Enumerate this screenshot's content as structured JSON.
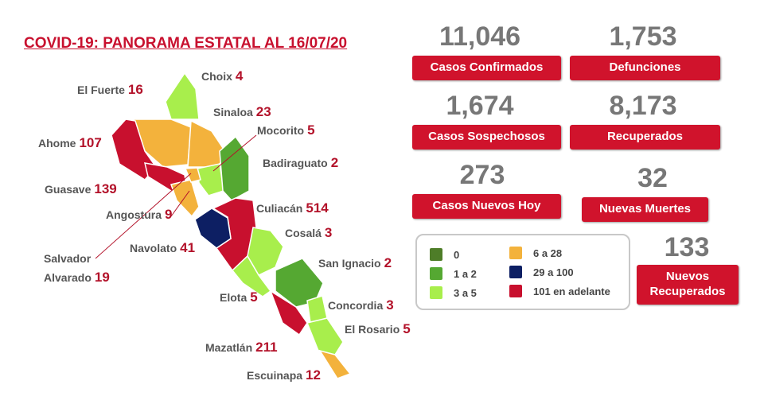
{
  "title": "COVID-19: PANORAMA ESTATAL AL 16/07/20",
  "stats": [
    {
      "value": "11,046",
      "label": "Casos Confirmados"
    },
    {
      "value": "1,753",
      "label": "Defunciones"
    },
    {
      "value": "1,674",
      "label": "Casos Sospechosos"
    },
    {
      "value": "8,173",
      "label": "Recuperados"
    },
    {
      "value": "273",
      "label": "Casos Nuevos Hoy"
    },
    {
      "value": "32",
      "label": "Nuevas Muertes"
    },
    {
      "value": "133",
      "label": "Nuevos Recuperados"
    }
  ],
  "legend": [
    {
      "label": "0",
      "color": "#4e7d28"
    },
    {
      "label": "1 a 2",
      "color": "#55a832"
    },
    {
      "label": "3 a 5",
      "color": "#a8ee4c"
    },
    {
      "label": "6 a 28",
      "color": "#f3b23c"
    },
    {
      "label": "29 a 100",
      "color": "#0d1f63"
    },
    {
      "label": "101 en adelante",
      "color": "#c8102e"
    }
  ],
  "municipalities": [
    {
      "name": "Choix",
      "count": 4,
      "color": "#a8ee4c"
    },
    {
      "name": "El Fuerte",
      "count": 16,
      "color": "#f3b23c"
    },
    {
      "name": "Sinaloa",
      "count": 23,
      "color": "#f3b23c"
    },
    {
      "name": "Mocorito",
      "count": 5,
      "color": "#a8ee4c"
    },
    {
      "name": "Ahome",
      "count": 107,
      "color": "#c8102e"
    },
    {
      "name": "Badiraguato",
      "count": 2,
      "color": "#55a832"
    },
    {
      "name": "Guasave",
      "count": 139,
      "color": "#c8102e"
    },
    {
      "name": "Culiacán",
      "count": 514,
      "color": "#c8102e"
    },
    {
      "name": "Angostura",
      "count": 9,
      "color": "#f3b23c"
    },
    {
      "name": "Cosalá",
      "count": 3,
      "color": "#a8ee4c"
    },
    {
      "name": "Navolato",
      "count": 41,
      "color": "#0d1f63"
    },
    {
      "name": "San Ignacio",
      "count": 2,
      "color": "#55a832"
    },
    {
      "name": "Salvador Alvarado",
      "count": 19,
      "color": "#f3b23c"
    },
    {
      "name": "Elota",
      "count": 5,
      "color": "#a8ee4c"
    },
    {
      "name": "Concordia",
      "count": 3,
      "color": "#a8ee4c"
    },
    {
      "name": "El Rosario",
      "count": 5,
      "color": "#a8ee4c"
    },
    {
      "name": "Mazatlán",
      "count": 211,
      "color": "#c8102e"
    },
    {
      "name": "Escuinapa",
      "count": 12,
      "color": "#f3b23c"
    }
  ]
}
